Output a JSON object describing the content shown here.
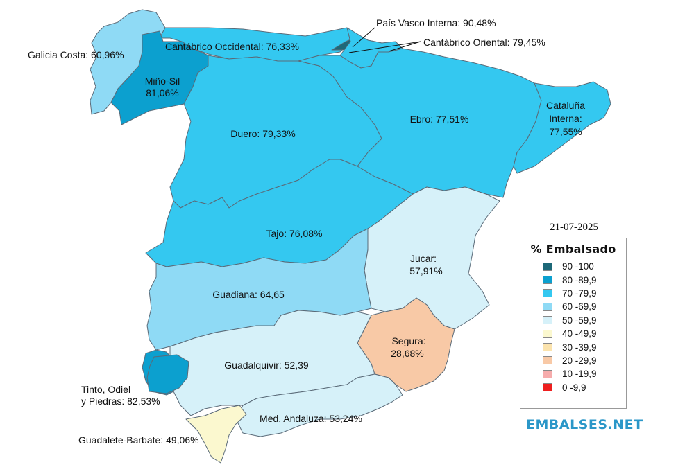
{
  "date": "21-07-2025",
  "legend": {
    "title": "% Embalsado",
    "items": [
      {
        "range": "90 -100",
        "color": "#1d6878"
      },
      {
        "range": "80 -89,9",
        "color": "#0ca0cf"
      },
      {
        "range": "70 -79,9",
        "color": "#34c8f0"
      },
      {
        "range": "60 -69,9",
        "color": "#8fdaf5"
      },
      {
        "range": "50 -59,9",
        "color": "#d6f1f9"
      },
      {
        "range": "40 -49,9",
        "color": "#fbf8cf"
      },
      {
        "range": "30 -39,9",
        "color": "#fbe3ad"
      },
      {
        "range": "20 -29,9",
        "color": "#f8c9a6"
      },
      {
        "range": "10 -19,9",
        "color": "#f6acac"
      },
      {
        "range": "0 -9,9",
        "color": "#ee1f1f"
      }
    ]
  },
  "basins": {
    "galicia_costa": {
      "label": "Galicia Costa: 60,96%",
      "value": 60.96,
      "color": "#8fdaf5"
    },
    "mino_sil": {
      "label_1": "Miño-Sil",
      "label_2": "81,06%",
      "value": 81.06,
      "color": "#0ca0cf"
    },
    "cantabrico_occidental": {
      "label": "Cantábrico Occidental: 76,33%",
      "value": 76.33,
      "color": "#34c8f0"
    },
    "pais_vasco_interna": {
      "label": "País Vasco Interna: 90,48%",
      "value": 90.48,
      "color": "#1d6878"
    },
    "cantabrico_oriental": {
      "label": "Cantábrico Oriental: 79,45%",
      "value": 79.45,
      "color": "#34c8f0"
    },
    "duero": {
      "label": "Duero: 79,33%",
      "value": 79.33,
      "color": "#34c8f0"
    },
    "ebro": {
      "label": "Ebro: 77,51%",
      "value": 77.51,
      "color": "#34c8f0"
    },
    "cataluna_interna": {
      "label_1": "Cataluña",
      "label_2": "Interna:",
      "label_3": "77,55%",
      "value": 77.55,
      "color": "#34c8f0"
    },
    "tajo": {
      "label": "Tajo: 76,08%",
      "value": 76.08,
      "color": "#34c8f0"
    },
    "jucar": {
      "label_1": "Jucar:",
      "label_2": "57,91%",
      "value": 57.91,
      "color": "#d6f1f9"
    },
    "guadiana": {
      "label": "Guadiana: 64,65",
      "value": 64.65,
      "color": "#8fdaf5"
    },
    "segura": {
      "label_1": "Segura:",
      "label_2": "28,68%",
      "value": 28.68,
      "color": "#f8c9a6"
    },
    "guadalquivir": {
      "label": "Guadalquivir: 52,39",
      "value": 52.39,
      "color": "#d6f1f9"
    },
    "tinto_odiel_piedras": {
      "label_1": "Tinto, Odiel",
      "label_2": "y Piedras: 82,53%",
      "value": 82.53,
      "color": "#0ca0cf"
    },
    "mediterranea_andaluza": {
      "label": "Med. Andaluza: 53,24%",
      "value": 53.24,
      "color": "#d6f1f9"
    },
    "guadalete_barbate": {
      "label": "Guadalete-Barbate: 49,06%",
      "value": 49.06,
      "color": "#fbf8cf"
    }
  },
  "brand": {
    "name": "EMBALSES.NET",
    "color": "#2b97c8",
    "icon": "water-drop-icon"
  }
}
